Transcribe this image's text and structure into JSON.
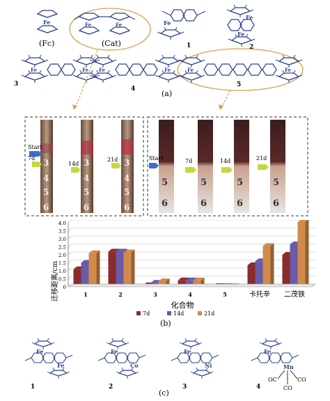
{
  "panel_a": {
    "compounds": [
      {
        "id": "fc",
        "label": "(Fc)"
      },
      {
        "id": "cat",
        "label": "(Cat)"
      },
      {
        "id": "c1",
        "label": "1"
      },
      {
        "id": "c2",
        "label": "2"
      },
      {
        "id": "c3",
        "label": "3"
      },
      {
        "id": "c4",
        "label": "4"
      },
      {
        "id": "c5",
        "label": "5"
      }
    ],
    "metal": "Fe",
    "caption": "(a)"
  },
  "photos": {
    "left_markers": [
      "Start",
      "7d",
      "14d",
      "21d"
    ],
    "right_markers": [
      "Start",
      "7d",
      "14d",
      "21d"
    ],
    "tick_numbers": [
      "3",
      "4",
      "5",
      "6"
    ]
  },
  "chart_data": {
    "type": "bar",
    "categories": [
      "1",
      "2",
      "3",
      "4",
      "5",
      "卡托辛",
      "二茂铁"
    ],
    "series": [
      {
        "name": "7d",
        "values": [
          1.1,
          2.2,
          0.1,
          0.4,
          0.05,
          1.35,
          2.0
        ]
      },
      {
        "name": "14d",
        "values": [
          1.5,
          2.2,
          0.25,
          0.4,
          0.05,
          1.6,
          2.65
        ]
      },
      {
        "name": "21d",
        "values": [
          2.1,
          2.15,
          0.35,
          0.4,
          0.05,
          2.55,
          4.05
        ]
      }
    ],
    "ylabel": "迁移距离/cm",
    "xlabel": "化合物",
    "ylim": [
      0,
      4.0
    ],
    "yticks": [
      "0",
      "0.5",
      "1.0",
      "1.5",
      "2.0",
      "2.5",
      "3.0",
      "3.5",
      "4.0"
    ],
    "legend_placement": "bottom-center",
    "colors": [
      "#8b2b2b",
      "#6a5aa8",
      "#d18a4a"
    ],
    "caption": "(b)"
  },
  "panel_c": {
    "compounds": [
      {
        "id": "c1",
        "label": "1",
        "metals": [
          "Fe",
          "Fe"
        ]
      },
      {
        "id": "c2",
        "label": "2",
        "metals": [
          "Fe",
          "Co"
        ]
      },
      {
        "id": "c3",
        "label": "3",
        "metals": [
          "Fe",
          "Ni"
        ]
      },
      {
        "id": "c4",
        "label": "4",
        "metals": [
          "Fe",
          "Mn"
        ],
        "ligands": [
          "OC",
          "CO",
          "CO"
        ]
      }
    ],
    "caption": "(c)"
  }
}
